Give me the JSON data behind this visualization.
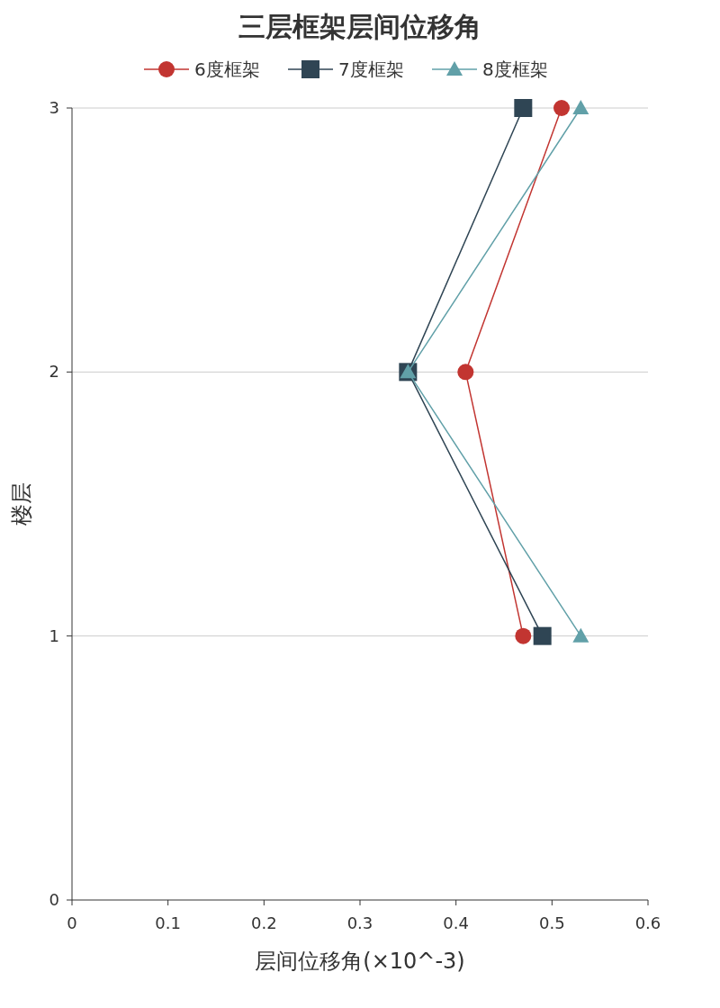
{
  "chart_data": {
    "type": "line",
    "title": "三层框架层间位移角",
    "xlabel": "层间位移角(×10^-3)",
    "ylabel": "楼层",
    "series": [
      {
        "name": "6度框架",
        "color": "#c23531",
        "marker": "circle",
        "x": [
          0.47,
          0.41,
          0.51
        ],
        "values": [
          1,
          2,
          3
        ]
      },
      {
        "name": "7度框架",
        "color": "#2f4554",
        "marker": "square",
        "x": [
          0.49,
          0.35,
          0.47
        ],
        "values": [
          1,
          2,
          3
        ]
      },
      {
        "name": "8度框架",
        "color": "#61a0a8",
        "marker": "triangle",
        "x": [
          0.53,
          0.35,
          0.53
        ],
        "values": [
          1,
          2,
          3
        ]
      }
    ],
    "xlim": [
      0,
      0.6
    ],
    "xticks": [
      0,
      0.1,
      0.2,
      0.3,
      0.4,
      0.5,
      0.6
    ],
    "ylim": [
      0,
      3
    ],
    "yticks": [
      0,
      1,
      2,
      3
    ],
    "grid": "y",
    "legend": "top",
    "line_style": "solid"
  }
}
